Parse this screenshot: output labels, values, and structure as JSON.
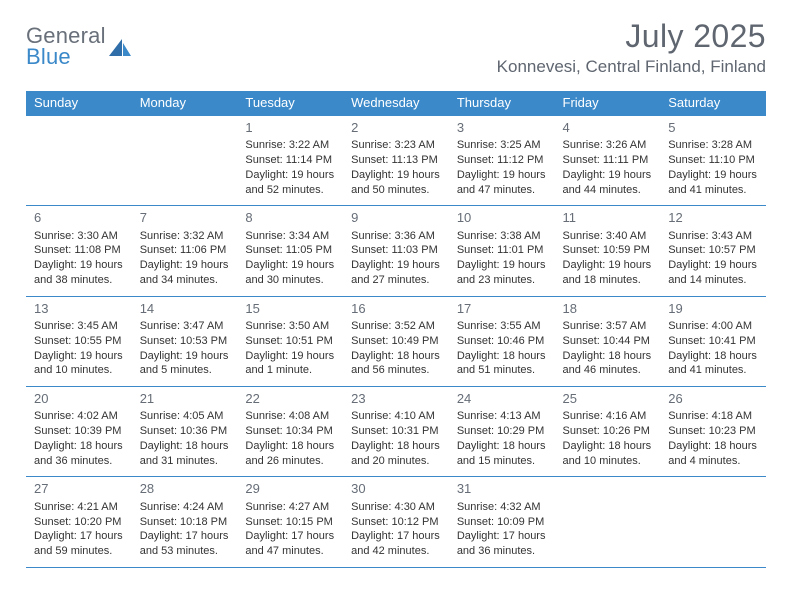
{
  "logo": {
    "text1": "General",
    "text2": "Blue"
  },
  "title": "July 2025",
  "location": "Konnevesi, Central Finland, Finland",
  "weekdays": [
    "Sunday",
    "Monday",
    "Tuesday",
    "Wednesday",
    "Thursday",
    "Friday",
    "Saturday"
  ],
  "colors": {
    "header_bg": "#3b89c9",
    "header_fg": "#ffffff",
    "border": "#3b89c9",
    "text": "#333",
    "title": "#5f6670"
  },
  "weeks": [
    [
      null,
      null,
      {
        "n": "1",
        "sunrise": "3:22 AM",
        "sunset": "11:14 PM",
        "daylight": "19 hours and 52 minutes."
      },
      {
        "n": "2",
        "sunrise": "3:23 AM",
        "sunset": "11:13 PM",
        "daylight": "19 hours and 50 minutes."
      },
      {
        "n": "3",
        "sunrise": "3:25 AM",
        "sunset": "11:12 PM",
        "daylight": "19 hours and 47 minutes."
      },
      {
        "n": "4",
        "sunrise": "3:26 AM",
        "sunset": "11:11 PM",
        "daylight": "19 hours and 44 minutes."
      },
      {
        "n": "5",
        "sunrise": "3:28 AM",
        "sunset": "11:10 PM",
        "daylight": "19 hours and 41 minutes."
      }
    ],
    [
      {
        "n": "6",
        "sunrise": "3:30 AM",
        "sunset": "11:08 PM",
        "daylight": "19 hours and 38 minutes."
      },
      {
        "n": "7",
        "sunrise": "3:32 AM",
        "sunset": "11:06 PM",
        "daylight": "19 hours and 34 minutes."
      },
      {
        "n": "8",
        "sunrise": "3:34 AM",
        "sunset": "11:05 PM",
        "daylight": "19 hours and 30 minutes."
      },
      {
        "n": "9",
        "sunrise": "3:36 AM",
        "sunset": "11:03 PM",
        "daylight": "19 hours and 27 minutes."
      },
      {
        "n": "10",
        "sunrise": "3:38 AM",
        "sunset": "11:01 PM",
        "daylight": "19 hours and 23 minutes."
      },
      {
        "n": "11",
        "sunrise": "3:40 AM",
        "sunset": "10:59 PM",
        "daylight": "19 hours and 18 minutes."
      },
      {
        "n": "12",
        "sunrise": "3:43 AM",
        "sunset": "10:57 PM",
        "daylight": "19 hours and 14 minutes."
      }
    ],
    [
      {
        "n": "13",
        "sunrise": "3:45 AM",
        "sunset": "10:55 PM",
        "daylight": "19 hours and 10 minutes."
      },
      {
        "n": "14",
        "sunrise": "3:47 AM",
        "sunset": "10:53 PM",
        "daylight": "19 hours and 5 minutes."
      },
      {
        "n": "15",
        "sunrise": "3:50 AM",
        "sunset": "10:51 PM",
        "daylight": "19 hours and 1 minute."
      },
      {
        "n": "16",
        "sunrise": "3:52 AM",
        "sunset": "10:49 PM",
        "daylight": "18 hours and 56 minutes."
      },
      {
        "n": "17",
        "sunrise": "3:55 AM",
        "sunset": "10:46 PM",
        "daylight": "18 hours and 51 minutes."
      },
      {
        "n": "18",
        "sunrise": "3:57 AM",
        "sunset": "10:44 PM",
        "daylight": "18 hours and 46 minutes."
      },
      {
        "n": "19",
        "sunrise": "4:00 AM",
        "sunset": "10:41 PM",
        "daylight": "18 hours and 41 minutes."
      }
    ],
    [
      {
        "n": "20",
        "sunrise": "4:02 AM",
        "sunset": "10:39 PM",
        "daylight": "18 hours and 36 minutes."
      },
      {
        "n": "21",
        "sunrise": "4:05 AM",
        "sunset": "10:36 PM",
        "daylight": "18 hours and 31 minutes."
      },
      {
        "n": "22",
        "sunrise": "4:08 AM",
        "sunset": "10:34 PM",
        "daylight": "18 hours and 26 minutes."
      },
      {
        "n": "23",
        "sunrise": "4:10 AM",
        "sunset": "10:31 PM",
        "daylight": "18 hours and 20 minutes."
      },
      {
        "n": "24",
        "sunrise": "4:13 AM",
        "sunset": "10:29 PM",
        "daylight": "18 hours and 15 minutes."
      },
      {
        "n": "25",
        "sunrise": "4:16 AM",
        "sunset": "10:26 PM",
        "daylight": "18 hours and 10 minutes."
      },
      {
        "n": "26",
        "sunrise": "4:18 AM",
        "sunset": "10:23 PM",
        "daylight": "18 hours and 4 minutes."
      }
    ],
    [
      {
        "n": "27",
        "sunrise": "4:21 AM",
        "sunset": "10:20 PM",
        "daylight": "17 hours and 59 minutes."
      },
      {
        "n": "28",
        "sunrise": "4:24 AM",
        "sunset": "10:18 PM",
        "daylight": "17 hours and 53 minutes."
      },
      {
        "n": "29",
        "sunrise": "4:27 AM",
        "sunset": "10:15 PM",
        "daylight": "17 hours and 47 minutes."
      },
      {
        "n": "30",
        "sunrise": "4:30 AM",
        "sunset": "10:12 PM",
        "daylight": "17 hours and 42 minutes."
      },
      {
        "n": "31",
        "sunrise": "4:32 AM",
        "sunset": "10:09 PM",
        "daylight": "17 hours and 36 minutes."
      },
      null,
      null
    ]
  ]
}
